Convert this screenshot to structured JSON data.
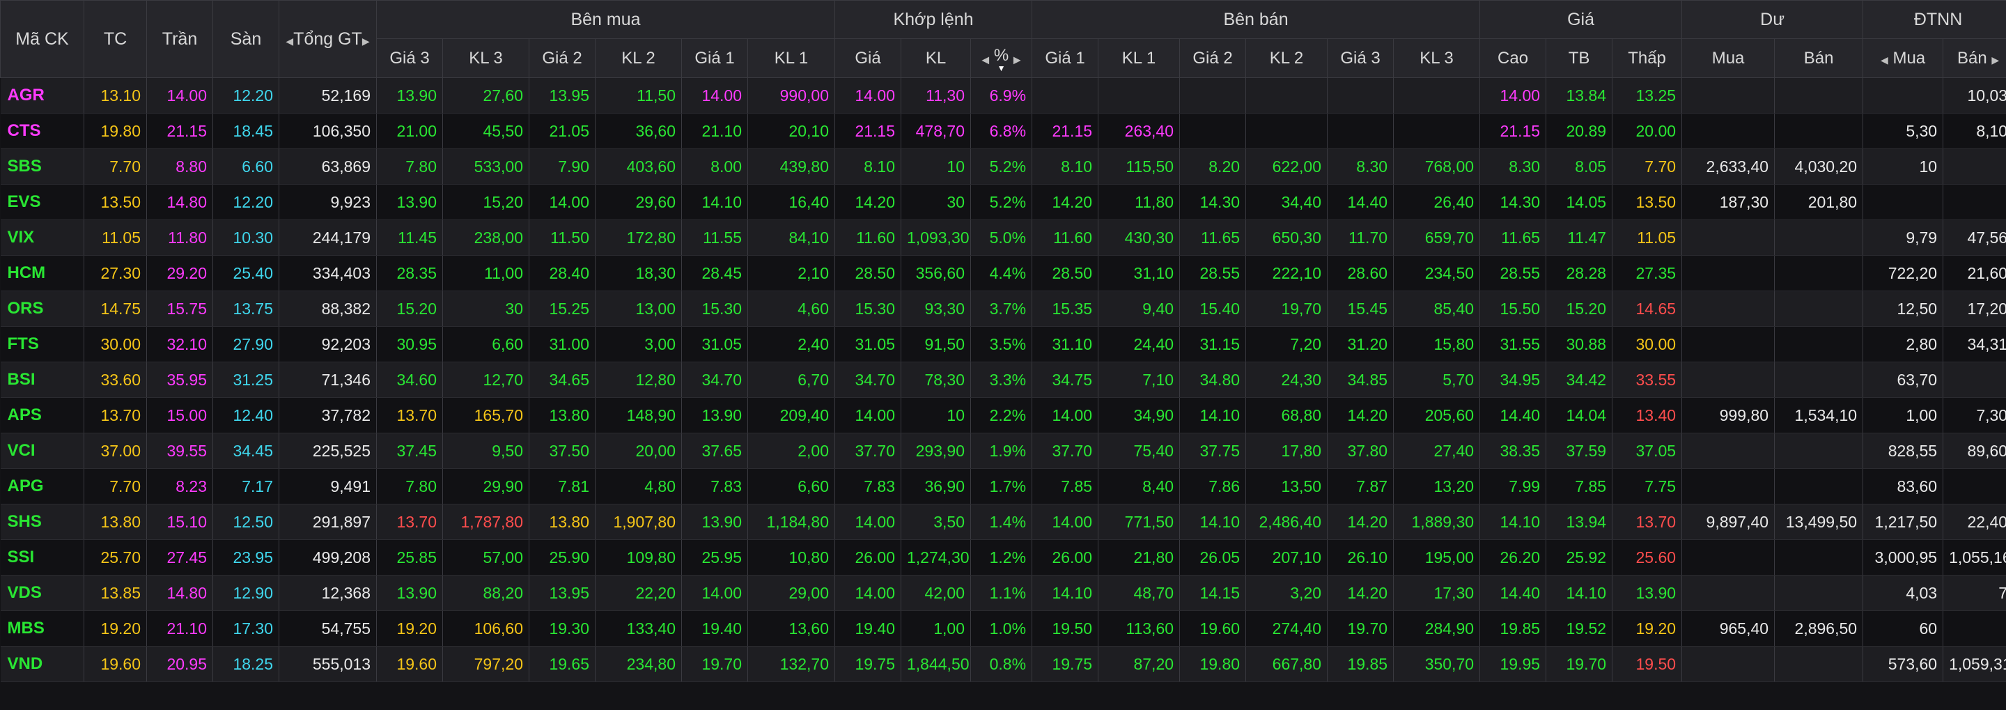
{
  "header": {
    "symbol": "Mã CK",
    "ref": "TC",
    "ceil": "Trần",
    "floor": "Sàn",
    "total_value": "Tổng GT",
    "buy_group": "Bên mua",
    "match_group": "Khớp lệnh",
    "sell_group": "Bên bán",
    "price_group": "Giá",
    "remain_group": "Dư",
    "foreign_group": "ĐTNN",
    "bid3": "Giá 3",
    "bvol3": "KL 3",
    "bid2": "Giá 2",
    "bvol2": "KL 2",
    "bid1": "Giá 1",
    "bvol1": "KL 1",
    "match_price": "Giá",
    "match_vol": "KL",
    "match_pct": "%",
    "ask1": "Giá 1",
    "avol1": "KL 1",
    "ask2": "Giá 2",
    "avol2": "KL 2",
    "ask3": "Giá 3",
    "avol3": "KL 3",
    "high": "Cao",
    "avg": "TB",
    "low": "Thấp",
    "remain_buy": "Mua",
    "remain_sell": "Bán",
    "foreign_buy": "Mua",
    "foreign_sell": "Bán"
  },
  "colors": {
    "ceil": "#ff3bff",
    "up": "#29e633",
    "ref": "#f5c518",
    "down": "#ff4d4d",
    "floor": "#3fd6ec",
    "white": "#e9e9e9"
  },
  "rows": [
    [
      "AGR",
      "13.10",
      "14.00",
      "12.20",
      "52,169",
      "13.90",
      "27,60",
      "13.95",
      "11,50",
      "14.00",
      "990,00",
      "14.00",
      "11,30",
      "6.9%",
      "",
      "",
      "",
      "",
      "",
      "",
      "14.00",
      "13.84",
      "13.25",
      "",
      "",
      "",
      "10,03"
    ],
    [
      "CTS",
      "19.80",
      "21.15",
      "18.45",
      "106,350",
      "21.00",
      "45,50",
      "21.05",
      "36,60",
      "21.10",
      "20,10",
      "21.15",
      "478,70",
      "6.8%",
      "21.15",
      "263,40",
      "",
      "",
      "",
      "",
      "21.15",
      "20.89",
      "20.00",
      "",
      "",
      "5,30",
      "8,10"
    ],
    [
      "SBS",
      "7.70",
      "8.80",
      "6.60",
      "63,869",
      "7.80",
      "533,00",
      "7.90",
      "403,60",
      "8.00",
      "439,80",
      "8.10",
      "10",
      "5.2%",
      "8.10",
      "115,50",
      "8.20",
      "622,00",
      "8.30",
      "768,00",
      "8.30",
      "8.05",
      "7.70",
      "2,633,40",
      "4,030,20",
      "10",
      ""
    ],
    [
      "EVS",
      "13.50",
      "14.80",
      "12.20",
      "9,923",
      "13.90",
      "15,20",
      "14.00",
      "29,60",
      "14.10",
      "16,40",
      "14.20",
      "30",
      "5.2%",
      "14.20",
      "11,80",
      "14.30",
      "34,40",
      "14.40",
      "26,40",
      "14.30",
      "14.05",
      "13.50",
      "187,30",
      "201,80",
      "",
      ""
    ],
    [
      "VIX",
      "11.05",
      "11.80",
      "10.30",
      "244,179",
      "11.45",
      "238,00",
      "11.50",
      "172,80",
      "11.55",
      "84,10",
      "11.60",
      "1,093,30",
      "5.0%",
      "11.60",
      "430,30",
      "11.65",
      "650,30",
      "11.70",
      "659,70",
      "11.65",
      "11.47",
      "11.05",
      "",
      "",
      "9,79",
      "47,56"
    ],
    [
      "HCM",
      "27.30",
      "29.20",
      "25.40",
      "334,403",
      "28.35",
      "11,00",
      "28.40",
      "18,30",
      "28.45",
      "2,10",
      "28.50",
      "356,60",
      "4.4%",
      "28.50",
      "31,10",
      "28.55",
      "222,10",
      "28.60",
      "234,50",
      "28.55",
      "28.28",
      "27.35",
      "",
      "",
      "722,20",
      "21,60"
    ],
    [
      "ORS",
      "14.75",
      "15.75",
      "13.75",
      "88,382",
      "15.20",
      "30",
      "15.25",
      "13,00",
      "15.30",
      "4,60",
      "15.30",
      "93,30",
      "3.7%",
      "15.35",
      "9,40",
      "15.40",
      "19,70",
      "15.45",
      "85,40",
      "15.50",
      "15.20",
      "14.65",
      "",
      "",
      "12,50",
      "17,20"
    ],
    [
      "FTS",
      "30.00",
      "32.10",
      "27.90",
      "92,203",
      "30.95",
      "6,60",
      "31.00",
      "3,00",
      "31.05",
      "2,40",
      "31.05",
      "91,50",
      "3.5%",
      "31.10",
      "24,40",
      "31.15",
      "7,20",
      "31.20",
      "15,80",
      "31.55",
      "30.88",
      "30.00",
      "",
      "",
      "2,80",
      "34,31"
    ],
    [
      "BSI",
      "33.60",
      "35.95",
      "31.25",
      "71,346",
      "34.60",
      "12,70",
      "34.65",
      "12,80",
      "34.70",
      "6,70",
      "34.70",
      "78,30",
      "3.3%",
      "34.75",
      "7,10",
      "34.80",
      "24,30",
      "34.85",
      "5,70",
      "34.95",
      "34.42",
      "33.55",
      "",
      "",
      "63,70",
      ""
    ],
    [
      "APS",
      "13.70",
      "15.00",
      "12.40",
      "37,782",
      "13.70",
      "165,70",
      "13.80",
      "148,90",
      "13.90",
      "209,40",
      "14.00",
      "10",
      "2.2%",
      "14.00",
      "34,90",
      "14.10",
      "68,80",
      "14.20",
      "205,60",
      "14.40",
      "14.04",
      "13.40",
      "999,80",
      "1,534,10",
      "1,00",
      "7,30"
    ],
    [
      "VCI",
      "37.00",
      "39.55",
      "34.45",
      "225,525",
      "37.45",
      "9,50",
      "37.50",
      "20,00",
      "37.65",
      "2,00",
      "37.70",
      "293,90",
      "1.9%",
      "37.70",
      "75,40",
      "37.75",
      "17,80",
      "37.80",
      "27,40",
      "38.35",
      "37.59",
      "37.05",
      "",
      "",
      "828,55",
      "89,60"
    ],
    [
      "APG",
      "7.70",
      "8.23",
      "7.17",
      "9,491",
      "7.80",
      "29,90",
      "7.81",
      "4,80",
      "7.83",
      "6,60",
      "7.83",
      "36,90",
      "1.7%",
      "7.85",
      "8,40",
      "7.86",
      "13,50",
      "7.87",
      "13,20",
      "7.99",
      "7.85",
      "7.75",
      "",
      "",
      "83,60",
      ""
    ],
    [
      "SHS",
      "13.80",
      "15.10",
      "12.50",
      "291,897",
      "13.70",
      "1,787,80",
      "13.80",
      "1,907,80",
      "13.90",
      "1,184,80",
      "14.00",
      "3,50",
      "1.4%",
      "14.00",
      "771,50",
      "14.10",
      "2,486,40",
      "14.20",
      "1,889,30",
      "14.10",
      "13.94",
      "13.70",
      "9,897,40",
      "13,499,50",
      "1,217,50",
      "22,40"
    ],
    [
      "SSI",
      "25.70",
      "27.45",
      "23.95",
      "499,208",
      "25.85",
      "57,00",
      "25.90",
      "109,80",
      "25.95",
      "10,80",
      "26.00",
      "1,274,30",
      "1.2%",
      "26.00",
      "21,80",
      "26.05",
      "207,10",
      "26.10",
      "195,00",
      "26.20",
      "25.92",
      "25.60",
      "",
      "",
      "3,000,95",
      "1,055,16"
    ],
    [
      "VDS",
      "13.85",
      "14.80",
      "12.90",
      "12,368",
      "13.90",
      "88,20",
      "13.95",
      "22,20",
      "14.00",
      "29,00",
      "14.00",
      "42,00",
      "1.1%",
      "14.10",
      "48,70",
      "14.15",
      "3,20",
      "14.20",
      "17,30",
      "14.40",
      "14.10",
      "13.90",
      "",
      "",
      "4,03",
      "7"
    ],
    [
      "MBS",
      "19.20",
      "21.10",
      "17.30",
      "54,755",
      "19.20",
      "106,60",
      "19.30",
      "133,40",
      "19.40",
      "13,60",
      "19.40",
      "1,00",
      "1.0%",
      "19.50",
      "113,60",
      "19.60",
      "274,40",
      "19.70",
      "284,90",
      "19.85",
      "19.52",
      "19.20",
      "965,40",
      "2,896,50",
      "60",
      ""
    ],
    [
      "VND",
      "19.60",
      "20.95",
      "18.25",
      "555,013",
      "19.60",
      "797,20",
      "19.65",
      "234,80",
      "19.70",
      "132,70",
      "19.75",
      "1,844,50",
      "0.8%",
      "19.75",
      "87,20",
      "19.80",
      "667,80",
      "19.85",
      "350,70",
      "19.95",
      "19.70",
      "19.50",
      "",
      "",
      "573,60",
      "1,059,31"
    ]
  ]
}
